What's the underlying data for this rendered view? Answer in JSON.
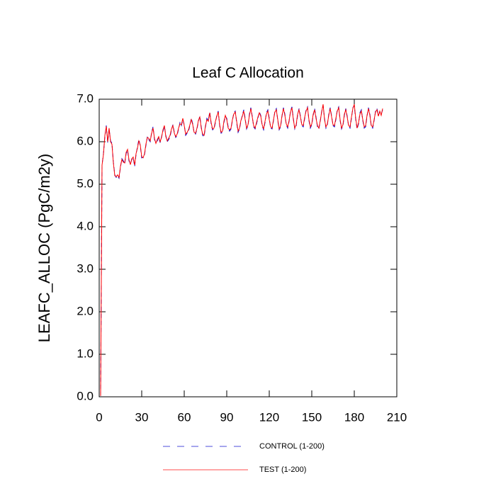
{
  "chart_data": {
    "type": "line",
    "title": "Leaf C Allocation",
    "y_label": "LEAFC_ALLOC  (PgC/m2y)",
    "x": [
      1,
      2,
      3,
      4,
      5,
      6,
      7,
      8,
      9,
      10,
      11,
      12,
      13,
      14,
      15,
      16,
      17,
      18,
      19,
      20,
      21,
      22,
      23,
      24,
      25,
      26,
      27,
      28,
      29,
      30,
      31,
      32,
      33,
      34,
      35,
      36,
      37,
      38,
      39,
      40,
      41,
      42,
      43,
      44,
      45,
      46,
      47,
      48,
      49,
      50,
      51,
      52,
      53,
      54,
      55,
      56,
      57,
      58,
      59,
      60,
      61,
      62,
      63,
      64,
      65,
      66,
      67,
      68,
      69,
      70,
      71,
      72,
      73,
      74,
      75,
      76,
      77,
      78,
      79,
      80,
      81,
      82,
      83,
      84,
      85,
      86,
      87,
      88,
      89,
      90,
      91,
      92,
      93,
      94,
      95,
      96,
      97,
      98,
      99,
      100,
      101,
      102,
      103,
      104,
      105,
      106,
      107,
      108,
      109,
      110,
      111,
      112,
      113,
      114,
      115,
      116,
      117,
      118,
      119,
      120,
      121,
      122,
      123,
      124,
      125,
      126,
      127,
      128,
      129,
      130,
      131,
      132,
      133,
      134,
      135,
      136,
      137,
      138,
      139,
      140,
      141,
      142,
      143,
      144,
      145,
      146,
      147,
      148,
      149,
      150,
      151,
      152,
      153,
      154,
      155,
      156,
      157,
      158,
      159,
      160,
      161,
      162,
      163,
      164,
      165,
      166,
      167,
      168,
      169,
      170,
      171,
      172,
      173,
      174,
      175,
      176,
      177,
      178,
      179,
      180,
      181,
      182,
      183,
      184,
      185,
      186,
      187,
      188,
      189,
      190,
      191,
      192,
      193,
      194,
      195,
      196,
      197,
      198,
      199,
      200
    ],
    "series": [
      {
        "name": "CONTROL (1-200)",
        "color": "#0000cc",
        "line_style": "dashed",
        "values": [
          0.02,
          5.45,
          5.72,
          6.12,
          6.38,
          5.98,
          6.3,
          6.02,
          5.96,
          5.52,
          5.22,
          5.16,
          5.2,
          5.14,
          5.4,
          5.6,
          5.55,
          5.48,
          5.72,
          5.8,
          5.55,
          5.48,
          5.58,
          5.62,
          5.42,
          5.7,
          5.88,
          6.05,
          5.9,
          5.62,
          5.64,
          5.7,
          5.92,
          6.12,
          6.05,
          6.0,
          6.22,
          6.35,
          6.05,
          5.98,
          6.02,
          6.1,
          5.98,
          6.12,
          6.25,
          6.36,
          6.15,
          6.0,
          6.05,
          6.12,
          6.28,
          6.4,
          6.22,
          6.1,
          6.15,
          6.3,
          6.45,
          6.38,
          6.52,
          6.4,
          6.15,
          6.2,
          6.25,
          6.38,
          6.55,
          6.42,
          6.2,
          6.18,
          6.3,
          6.48,
          6.6,
          6.35,
          6.15,
          6.12,
          6.35,
          6.55,
          6.5,
          6.7,
          6.42,
          6.28,
          6.3,
          6.45,
          6.62,
          6.72,
          6.38,
          6.2,
          6.22,
          6.45,
          6.6,
          6.55,
          6.35,
          6.25,
          6.3,
          6.5,
          6.68,
          6.72,
          6.45,
          6.22,
          6.3,
          6.48,
          6.62,
          6.75,
          6.55,
          6.3,
          6.38,
          6.65,
          6.8,
          6.6,
          6.35,
          6.3,
          6.42,
          6.55,
          6.7,
          6.62,
          6.38,
          6.28,
          6.45,
          6.68,
          6.75,
          6.55,
          6.32,
          6.3,
          6.5,
          6.72,
          6.78,
          6.5,
          6.28,
          6.35,
          6.6,
          6.8,
          6.65,
          6.4,
          6.32,
          6.48,
          6.72,
          6.82,
          6.55,
          6.3,
          6.38,
          6.62,
          6.78,
          6.6,
          6.38,
          6.35,
          6.55,
          6.75,
          6.82,
          6.5,
          6.32,
          6.4,
          6.62,
          6.78,
          6.58,
          6.35,
          6.3,
          6.48,
          6.72,
          6.85,
          6.55,
          6.32,
          6.4,
          6.65,
          6.8,
          6.6,
          6.38,
          6.35,
          6.52,
          6.75,
          6.82,
          6.5,
          6.3,
          6.38,
          6.62,
          6.78,
          6.6,
          6.36,
          6.32,
          6.55,
          6.8,
          6.85,
          6.52,
          6.3,
          6.42,
          6.68,
          6.75,
          6.5,
          6.32,
          6.35,
          6.6,
          6.8,
          6.65,
          6.35,
          6.32,
          6.5,
          6.72,
          6.78,
          6.62,
          6.7,
          6.65,
          6.75
        ]
      },
      {
        "name": "TEST (1-200)",
        "color": "#ff0000",
        "line_style": "solid",
        "values": [
          0.02,
          5.45,
          5.7,
          6.15,
          6.36,
          6.0,
          6.32,
          6.0,
          5.94,
          5.5,
          5.2,
          5.18,
          5.22,
          5.16,
          5.42,
          5.58,
          5.52,
          5.5,
          5.75,
          5.82,
          5.58,
          5.46,
          5.6,
          5.64,
          5.45,
          5.72,
          5.85,
          6.02,
          5.92,
          5.65,
          5.62,
          5.72,
          5.95,
          6.1,
          6.08,
          6.02,
          6.2,
          6.32,
          6.08,
          5.96,
          6.05,
          6.12,
          6.0,
          6.1,
          6.28,
          6.38,
          6.12,
          6.02,
          6.08,
          6.15,
          6.3,
          6.38,
          6.2,
          6.12,
          6.18,
          6.32,
          6.42,
          6.4,
          6.55,
          6.38,
          6.18,
          6.22,
          6.28,
          6.4,
          6.52,
          6.4,
          6.22,
          6.2,
          6.32,
          6.5,
          6.58,
          6.32,
          6.18,
          6.15,
          6.38,
          6.52,
          6.48,
          6.68,
          6.45,
          6.3,
          6.32,
          6.48,
          6.6,
          6.7,
          6.4,
          6.22,
          6.25,
          6.48,
          6.62,
          6.52,
          6.32,
          6.28,
          6.32,
          6.52,
          6.65,
          6.7,
          6.48,
          6.25,
          6.32,
          6.5,
          6.6,
          6.72,
          6.52,
          6.32,
          6.4,
          6.62,
          6.78,
          6.58,
          6.38,
          6.32,
          6.45,
          6.58,
          6.68,
          6.6,
          6.4,
          6.3,
          6.48,
          6.65,
          6.72,
          6.52,
          6.35,
          6.32,
          6.52,
          6.7,
          6.75,
          6.52,
          6.3,
          6.38,
          6.62,
          6.78,
          6.62,
          6.42,
          6.35,
          6.5,
          6.7,
          6.8,
          6.52,
          6.32,
          6.4,
          6.65,
          6.75,
          6.58,
          6.4,
          6.38,
          6.58,
          6.72,
          6.8,
          6.52,
          6.35,
          6.42,
          6.65,
          6.75,
          6.55,
          6.38,
          6.32,
          6.5,
          6.7,
          6.88,
          6.52,
          6.35,
          6.42,
          6.62,
          6.78,
          6.58,
          6.4,
          6.38,
          6.55,
          6.72,
          6.8,
          6.52,
          6.32,
          6.4,
          6.65,
          6.75,
          6.58,
          6.38,
          6.35,
          6.58,
          6.78,
          6.88,
          6.55,
          6.32,
          6.45,
          6.65,
          6.72,
          6.52,
          6.35,
          6.38,
          6.62,
          6.78,
          6.62,
          6.38,
          6.35,
          6.52,
          6.7,
          6.75,
          6.6,
          6.72,
          6.62,
          6.78
        ]
      }
    ],
    "xlim": [
      0,
      210
    ],
    "xticks": [
      0,
      30,
      60,
      90,
      120,
      150,
      180,
      210
    ],
    "ylim": [
      0,
      7
    ],
    "yticks": [
      {
        "value": 0,
        "label": "0.0"
      },
      {
        "value": 1,
        "label": "1.0"
      },
      {
        "value": 2,
        "label": "2.0"
      },
      {
        "value": 3,
        "label": "3.0"
      },
      {
        "value": 4,
        "label": "4.0"
      },
      {
        "value": 5,
        "label": "5.0"
      },
      {
        "value": 6,
        "label": "6.0"
      },
      {
        "value": 7,
        "label": "7.0"
      }
    ],
    "legend": "bottom"
  }
}
